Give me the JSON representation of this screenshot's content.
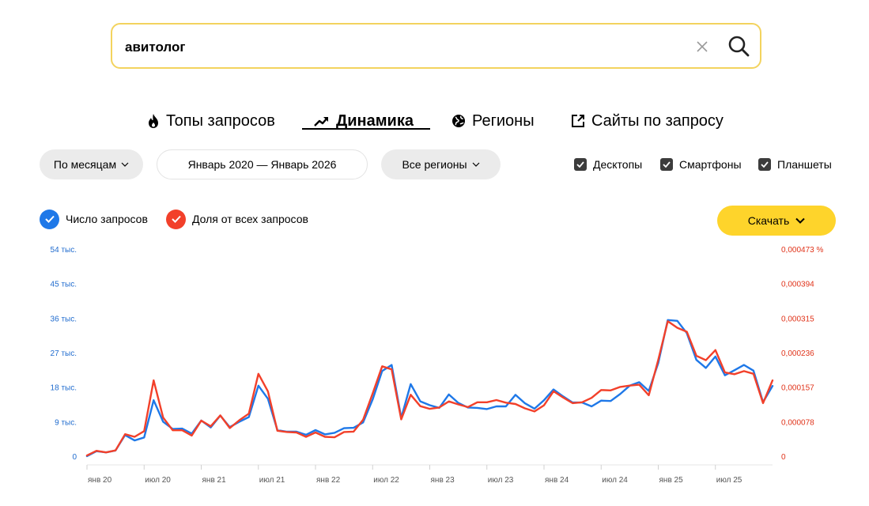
{
  "search": {
    "value": "авитолог"
  },
  "tabs": [
    {
      "label": "Топы запросов",
      "icon": "fire-icon"
    },
    {
      "label": "Динамика",
      "icon": "trend-icon",
      "active": true
    },
    {
      "label": "Регионы",
      "icon": "globe-icon"
    },
    {
      "label": "Сайты по запросу",
      "icon": "external-link-icon"
    }
  ],
  "filters": {
    "period": "По месяцам",
    "range": "Январь 2020 — Январь 2026",
    "regions": "Все регионы",
    "devices": [
      {
        "label": "Десктопы",
        "checked": true
      },
      {
        "label": "Смартфоны",
        "checked": true
      },
      {
        "label": "Планшеты",
        "checked": true
      }
    ]
  },
  "legend": {
    "queries": "Число запросов",
    "share": "Доля от всех запросов"
  },
  "download_label": "Скачать",
  "colors": {
    "queries": "#1e78e8",
    "share": "#f2402a",
    "accent": "#fed42b"
  },
  "chart_data": {
    "type": "line",
    "y_left_ticks": [
      "0",
      "9 тыс.",
      "18 тыс.",
      "27 тыс.",
      "36 тыс.",
      "45 тыс.",
      "54 тыс."
    ],
    "y_right_ticks": [
      "0",
      "0,000078",
      "0,000157",
      "0,000236",
      "0,000315",
      "0,000394",
      "0,000473 %"
    ],
    "ylim_left": [
      0,
      54000
    ],
    "ylim_right": [
      0,
      0.000473
    ],
    "x_tick_labels": [
      "янв 20",
      "июл 20",
      "янв 21",
      "июл 21",
      "янв 22",
      "июл 22",
      "янв 23",
      "июл 23",
      "янв 24",
      "июл 24",
      "янв 25",
      "июл 25"
    ],
    "x": [
      "2020-01",
      "2020-02",
      "2020-03",
      "2020-04",
      "2020-05",
      "2020-06",
      "2020-07",
      "2020-08",
      "2020-09",
      "2020-10",
      "2020-11",
      "2020-12",
      "2021-01",
      "2021-02",
      "2021-03",
      "2021-04",
      "2021-05",
      "2021-06",
      "2021-07",
      "2021-08",
      "2021-09",
      "2021-10",
      "2021-11",
      "2021-12",
      "2022-01",
      "2022-02",
      "2022-03",
      "2022-04",
      "2022-05",
      "2022-06",
      "2022-07",
      "2022-08",
      "2022-09",
      "2022-10",
      "2022-11",
      "2022-12",
      "2023-01",
      "2023-02",
      "2023-03",
      "2023-04",
      "2023-05",
      "2023-06",
      "2023-07",
      "2023-08",
      "2023-09",
      "2023-10",
      "2023-11",
      "2023-12",
      "2024-01",
      "2024-02",
      "2024-03",
      "2024-04",
      "2024-05",
      "2024-06",
      "2024-07",
      "2024-08",
      "2024-09",
      "2024-10",
      "2024-11",
      "2024-12",
      "2025-01",
      "2025-02",
      "2025-03",
      "2025-04",
      "2025-05",
      "2025-06",
      "2025-07",
      "2025-08",
      "2025-09",
      "2025-10",
      "2025-11",
      "2025-12",
      "2026-01"
    ],
    "series": [
      {
        "name": "Число запросов",
        "axis": "left",
        "values": [
          200,
          1500,
          1200,
          1700,
          5700,
          4300,
          5100,
          14800,
          9200,
          7300,
          7400,
          6100,
          9500,
          7700,
          10800,
          7800,
          9200,
          10400,
          18600,
          15200,
          7000,
          6600,
          6600,
          5800,
          7000,
          5900,
          6300,
          7500,
          7600,
          9000,
          15000,
          22400,
          24000,
          10200,
          19000,
          14500,
          13500,
          12800,
          16300,
          14100,
          12900,
          12800,
          12500,
          13200,
          13200,
          16200,
          14000,
          12600,
          14800,
          17600,
          15800,
          14200,
          14200,
          13200,
          14700,
          14600,
          16400,
          18600,
          19500,
          17200,
          24500,
          35700,
          35500,
          32300,
          25300,
          23200,
          26200,
          21300,
          22600,
          24000,
          22500,
          14300,
          18500
        ]
      },
      {
        "name": "Доля от всех запросов",
        "axis": "right",
        "values": [
          3.5e-06,
          1.4e-05,
          1.05e-05,
          1.5e-05,
          5.2e-05,
          4.6e-05,
          5.9e-05,
          0.000175,
          9e-05,
          6.1e-05,
          6.1e-05,
          4.9e-05,
          8.3e-05,
          7e-05,
          9.5e-05,
          6.6e-05,
          8.4e-05,
          9.9e-05,
          0.00019,
          0.00015,
          6e-05,
          5.7e-05,
          5.6e-05,
          4.6e-05,
          5.6e-05,
          4.6e-05,
          4.5e-05,
          5.7e-05,
          5.8e-05,
          8.5e-05,
          0.000145,
          0.000207,
          0.0002,
          8.6e-05,
          0.000142,
          0.000116,
          0.00011,
          0.000113,
          0.000127,
          0.00012,
          0.000114,
          0.000125,
          0.000125,
          0.00013,
          0.000124,
          0.000121,
          0.000111,
          0.000104,
          0.000118,
          0.00015,
          0.000136,
          0.000123,
          0.000125,
          0.000135,
          0.000153,
          0.000152,
          0.00016,
          0.000163,
          0.000165,
          0.000141,
          0.000222,
          0.00031,
          0.000295,
          0.000286,
          0.000231,
          0.000221,
          0.000244,
          0.000193,
          0.000189,
          0.000196,
          0.00019,
          0.000123,
          0.000175
        ]
      }
    ],
    "grid": false,
    "legend_position": "top-left"
  }
}
